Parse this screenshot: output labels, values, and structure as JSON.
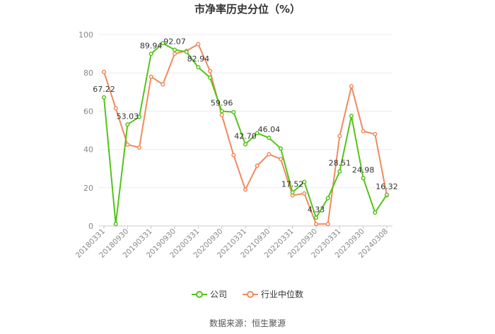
{
  "title": "市净率历史分位（%）",
  "source": "数据来源：恒生聚源",
  "chart_data": {
    "type": "line",
    "title": "市净率历史分位（%）",
    "ylim": [
      0,
      100
    ],
    "yticks": [
      0,
      20,
      40,
      60,
      80,
      100
    ],
    "grid": "horizontal",
    "legend": "bottom-center",
    "categories": [
      "20180331",
      "20180630",
      "20180930",
      "20181231",
      "20190331",
      "20190630",
      "20190930",
      "20191231",
      "20200331",
      "20200630",
      "20200930",
      "20201231",
      "20210331",
      "20210630",
      "20210930",
      "20211231",
      "20220331",
      "20220630",
      "20220930",
      "20221231",
      "20230331",
      "20230630",
      "20230930",
      "20231231",
      "20240308"
    ],
    "xtick_labels": [
      "20180331",
      "20180930",
      "20190331",
      "20190930",
      "20200331",
      "20200930",
      "20210331",
      "20210930",
      "20220331",
      "20220930",
      "20230331",
      "20230930",
      "20240308"
    ],
    "series": [
      {
        "name": "公司",
        "color": "#52c41a",
        "values": [
          67.22,
          1.0,
          53.03,
          57.0,
          89.94,
          95.5,
          92.07,
          91.0,
          82.94,
          77.5,
          59.96,
          59.5,
          42.7,
          48.5,
          46.04,
          40.5,
          17.52,
          23.0,
          4.33,
          14.5,
          28.51,
          57.5,
          24.98,
          7.0,
          16.32
        ],
        "data_labels": [
          {
            "index": 0,
            "text": "67.22"
          },
          {
            "index": 2,
            "text": "53.03"
          },
          {
            "index": 4,
            "text": "89.94"
          },
          {
            "index": 6,
            "text": "92.07"
          },
          {
            "index": 8,
            "text": "82.94"
          },
          {
            "index": 10,
            "text": "59.96"
          },
          {
            "index": 12,
            "text": "42.70"
          },
          {
            "index": 14,
            "text": "46.04"
          },
          {
            "index": 16,
            "text": "17.52"
          },
          {
            "index": 18,
            "text": "4.33"
          },
          {
            "index": 20,
            "text": "28.51"
          },
          {
            "index": 22,
            "text": "24.98"
          },
          {
            "index": 24,
            "text": "16.32"
          }
        ]
      },
      {
        "name": "行业中位数",
        "color": "#f08a5d",
        "values": [
          80.5,
          61.5,
          42.5,
          41.0,
          78.0,
          74.0,
          90.0,
          91.5,
          95.0,
          81.0,
          58.0,
          37.0,
          19.0,
          31.5,
          37.5,
          35.0,
          16.0,
          17.0,
          1.0,
          1.0,
          47.0,
          73.0,
          49.5,
          48.0,
          16.0
        ],
        "data_labels": []
      }
    ]
  }
}
